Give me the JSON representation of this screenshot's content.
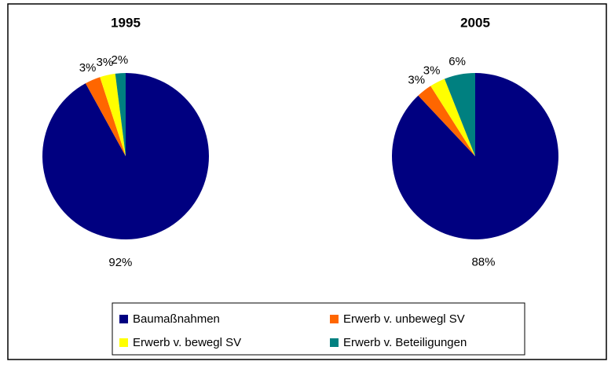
{
  "chart_data": [
    {
      "type": "pie",
      "title": "1995",
      "categories": [
        "Baumaßnahmen",
        "Erwerb v. unbewegl SV",
        "Erwerb v. bewegl SV",
        "Erwerb v. Beteiligungen"
      ],
      "values": [
        92,
        3,
        3,
        2
      ],
      "value_labels": [
        "92%",
        "3%",
        "3%",
        "2%"
      ],
      "colors": [
        "#000080",
        "#ff6600",
        "#ffff00",
        "#008080"
      ],
      "legend": "bottom"
    },
    {
      "type": "pie",
      "title": "2005",
      "categories": [
        "Baumaßnahmen",
        "Erwerb v. unbewegl SV",
        "Erwerb v. bewegl SV",
        "Erwerb v. Beteiligungen"
      ],
      "values": [
        88,
        3,
        3,
        6
      ],
      "value_labels": [
        "88%",
        "3%",
        "3%",
        "6%"
      ],
      "colors": [
        "#000080",
        "#ff6600",
        "#ffff00",
        "#008080"
      ],
      "legend": "bottom"
    }
  ]
}
